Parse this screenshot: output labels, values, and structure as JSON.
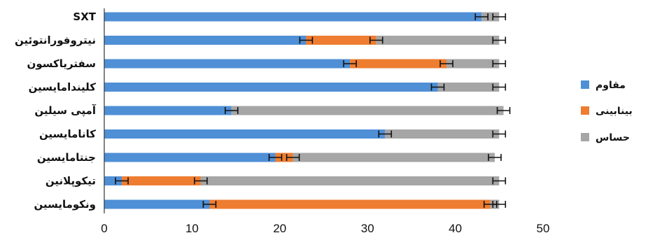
{
  "chart_data": {
    "type": "bar",
    "orientation": "horizontal",
    "stacked": true,
    "categories": [
      "SXT",
      "نیتروفورانتوئین",
      "سفتریاکسون",
      "کلیندامایسین",
      "آمپی سیلین",
      "کانامایسین",
      "جنتامایسین",
      "تیکوپلانین",
      "ونکومایسین"
    ],
    "series": [
      {
        "name": "مقاوم",
        "color": "#4f8fd6",
        "values": [
          43,
          23,
          28,
          38,
          14.5,
          32,
          19.5,
          2,
          12
        ]
      },
      {
        "name": "بینابینی",
        "color": "#ee7d31",
        "values": [
          0,
          8,
          11,
          0,
          0,
          0,
          2,
          9,
          32
        ]
      },
      {
        "name": "حساس",
        "color": "#a6a6a6",
        "values": [
          2,
          14,
          6,
          7,
          31,
          13,
          23,
          34,
          1
        ]
      }
    ],
    "x_ticks": [
      "0",
      "10",
      "20",
      "30",
      "40",
      "50"
    ],
    "xlim": [
      0,
      50
    ],
    "grid": false,
    "legend_position": "right",
    "title": "",
    "xlabel": "",
    "ylabel": ""
  }
}
